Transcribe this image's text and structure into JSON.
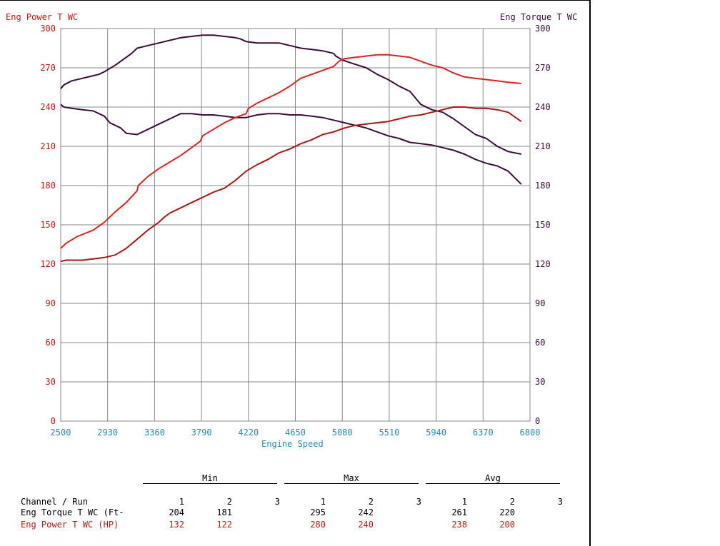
{
  "chart_data": {
    "type": "line",
    "title": "",
    "left_axis_label": "Eng Power T WC",
    "right_axis_label": "Eng Torque T WC",
    "xlabel": "Engine Speed",
    "xlim": [
      2500,
      6800
    ],
    "ylim": [
      0,
      300
    ],
    "x_ticks": [
      "2500",
      "2930",
      "3360",
      "3790",
      "4220",
      "4650",
      "5080",
      "5510",
      "5940",
      "6370",
      "6800"
    ],
    "y_ticks": [
      "0",
      "30",
      "60",
      "90",
      "120",
      "150",
      "180",
      "210",
      "240",
      "270",
      "300"
    ],
    "grid": true,
    "colors": {
      "torque": "#3a0f3a",
      "power_run1": "#e52020",
      "power_run2": "#b01414",
      "tick_left": "#c41818",
      "tick_x": "#2a8ab8"
    },
    "series": [
      {
        "name": "Eng Torque T WC (Ft- Run 1",
        "color": "#3a0f3a",
        "x": [
          2500,
          2530,
          2600,
          2700,
          2800,
          2850,
          2900,
          3000,
          3100,
          3150,
          3200,
          3300,
          3400,
          3500,
          3600,
          3700,
          3800,
          3900,
          4000,
          4100,
          4150,
          4200,
          4300,
          4400,
          4500,
          4550,
          4600,
          4700,
          4800,
          4900,
          5000,
          5020,
          5080,
          5150,
          5300,
          5400,
          5500,
          5600,
          5700,
          5760,
          5800,
          5900,
          6000,
          6100,
          6200,
          6300,
          6400,
          6450,
          6500,
          6600,
          6720
        ],
        "y": [
          254,
          257,
          260,
          262,
          264,
          265,
          267,
          272,
          278,
          281,
          285,
          287,
          289,
          291,
          293,
          294,
          295,
          295,
          294,
          293,
          292,
          290,
          289,
          289,
          289,
          288,
          287,
          285,
          284,
          283,
          281,
          279,
          276,
          274,
          270,
          265,
          261,
          256,
          252,
          246,
          242,
          238,
          236,
          231,
          225,
          219,
          216,
          213,
          210,
          206,
          204
        ]
      },
      {
        "name": "Eng Torque T WC (Ft- Run 2",
        "color": "#3a0f3a",
        "x": [
          2500,
          2530,
          2600,
          2700,
          2800,
          2900,
          2950,
          3000,
          3050,
          3100,
          3200,
          3300,
          3400,
          3500,
          3600,
          3700,
          3800,
          3900,
          4000,
          4100,
          4200,
          4300,
          4400,
          4500,
          4600,
          4700,
          4800,
          4900,
          5000,
          5100,
          5200,
          5300,
          5400,
          5500,
          5600,
          5700,
          5800,
          5900,
          6000,
          6100,
          6200,
          6300,
          6400,
          6500,
          6600,
          6720
        ],
        "y": [
          242,
          240,
          239,
          238,
          237,
          233,
          228,
          226,
          224,
          220,
          219,
          223,
          227,
          231,
          235,
          235,
          234,
          234,
          233,
          232,
          232,
          234,
          235,
          235,
          234,
          234,
          233,
          232,
          230,
          228,
          226,
          224,
          221,
          218,
          216,
          213,
          212,
          211,
          209,
          207,
          204,
          200,
          197,
          195,
          191,
          181
        ]
      },
      {
        "name": "Eng Power T WC (HP) Run 1",
        "color": "#e52020",
        "x": [
          2500,
          2550,
          2650,
          2800,
          2900,
          3000,
          3100,
          3200,
          3210,
          3300,
          3400,
          3500,
          3600,
          3700,
          3780,
          3800,
          3900,
          4000,
          4100,
          4200,
          4220,
          4300,
          4400,
          4500,
          4600,
          4700,
          4800,
          4900,
          5000,
          5050,
          5100,
          5200,
          5300,
          5400,
          5500,
          5600,
          5700,
          5800,
          5900,
          6000,
          6100,
          6200,
          6300,
          6400,
          6500,
          6600,
          6720
        ],
        "y": [
          132,
          136,
          141,
          146,
          152,
          160,
          167,
          176,
          180,
          187,
          193,
          198,
          203,
          209,
          214,
          218,
          223,
          228,
          232,
          235,
          239,
          243,
          247,
          251,
          256,
          262,
          265,
          268,
          271,
          275,
          277,
          278,
          279,
          280,
          280,
          279,
          278,
          275,
          272,
          270,
          266,
          263,
          262,
          261,
          260,
          259,
          258
        ]
      },
      {
        "name": "Eng Power T WC (HP) Run 2",
        "color": "#b01414",
        "x": [
          2500,
          2550,
          2600,
          2700,
          2800,
          2900,
          3000,
          3100,
          3200,
          3300,
          3400,
          3450,
          3500,
          3600,
          3700,
          3800,
          3900,
          4000,
          4100,
          4200,
          4300,
          4400,
          4500,
          4600,
          4700,
          4800,
          4900,
          5000,
          5100,
          5200,
          5300,
          5400,
          5500,
          5600,
          5700,
          5800,
          5900,
          6000,
          6100,
          6200,
          6300,
          6400,
          6500,
          6600,
          6720
        ],
        "y": [
          122,
          123,
          123,
          123,
          124,
          125,
          127,
          132,
          139,
          146,
          152,
          156,
          159,
          163,
          167,
          171,
          175,
          178,
          184,
          191,
          196,
          200,
          205,
          208,
          212,
          215,
          219,
          221,
          224,
          226,
          227,
          228,
          229,
          231,
          233,
          234,
          236,
          238,
          240,
          240,
          239,
          239,
          238,
          236,
          229
        ]
      }
    ]
  },
  "stats_table": {
    "group_headers": [
      "Min",
      "Max",
      "Avg"
    ],
    "run_header_label": "Channel / Run",
    "run_numbers": [
      "1",
      "2",
      "3",
      "1",
      "2",
      "3",
      "1",
      "2",
      "3"
    ],
    "rows": [
      {
        "label": "Eng Torque T WC (Ft-",
        "color": "#000000",
        "values": [
          "204",
          "181",
          "",
          "295",
          "242",
          "",
          "261",
          "220",
          ""
        ]
      },
      {
        "label": "Eng Power T WC (HP)",
        "color": "#c41818",
        "values": [
          "132",
          "122",
          "",
          "280",
          "240",
          "",
          "238",
          "200",
          ""
        ]
      }
    ]
  }
}
